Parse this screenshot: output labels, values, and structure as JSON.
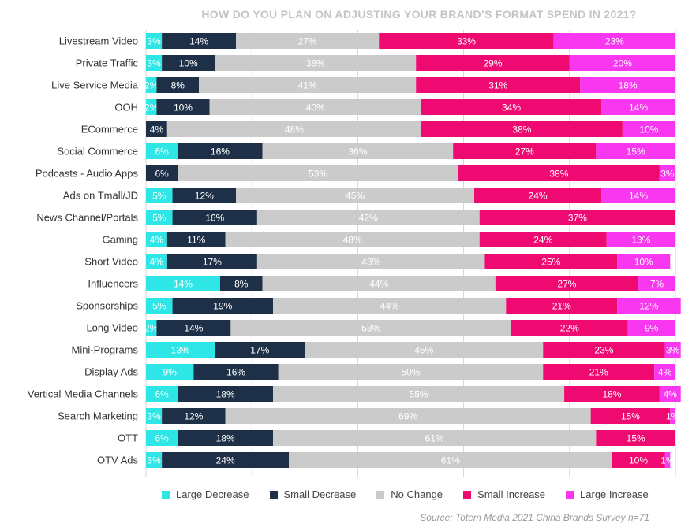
{
  "chart_data": {
    "type": "bar",
    "orientation": "horizontal-stacked-100",
    "title": "HOW DO YOU PLAN ON ADJUSTING YOUR BRAND’S FORMAT SPEND IN 2021?",
    "source": "Source: Totem Media 2021 China Brands Survey n=71",
    "xlim": [
      0,
      100
    ],
    "categories": [
      "Livestream Video",
      "Private Traffic",
      "Live Service Media",
      "OOH",
      "ECommerce",
      "Social Commerce",
      "Podcasts - Audio Apps",
      "Ads on Tmall/JD",
      "News Channel/Portals",
      "Gaming",
      "Short Video",
      "Influencers",
      "Sponsorships",
      "Long Video",
      "Mini-Programs",
      "Display Ads",
      "Vertical Media Channels",
      "Search Marketing",
      "OTT",
      "OTV Ads"
    ],
    "series": [
      {
        "name": "Large Decrease",
        "color": "#2ee6e6",
        "values": [
          3,
          3,
          2,
          2,
          0,
          6,
          0,
          5,
          5,
          4,
          4,
          14,
          5,
          2,
          13,
          9,
          6,
          3,
          6,
          3
        ]
      },
      {
        "name": "Small Decrease",
        "color": "#1e3048",
        "values": [
          14,
          10,
          8,
          10,
          4,
          16,
          6,
          12,
          16,
          11,
          17,
          8,
          19,
          14,
          17,
          16,
          18,
          12,
          18,
          24
        ]
      },
      {
        "name": "No Change",
        "color": "#cbcbcb",
        "values": [
          27,
          38,
          41,
          40,
          48,
          36,
          53,
          45,
          42,
          48,
          43,
          44,
          44,
          53,
          45,
          50,
          55,
          69,
          61,
          61
        ]
      },
      {
        "name": "Small Increase",
        "color": "#ef0a72",
        "values": [
          33,
          29,
          31,
          34,
          38,
          27,
          38,
          24,
          37,
          24,
          25,
          27,
          21,
          22,
          23,
          21,
          18,
          15,
          15,
          10
        ]
      },
      {
        "name": "Large Increase",
        "color": "#fa37f0",
        "values": [
          23,
          20,
          18,
          14,
          10,
          15,
          3,
          14,
          0,
          13,
          10,
          7,
          12,
          9,
          3,
          4,
          4,
          1,
          0,
          1
        ]
      }
    ],
    "value_label_suffix": "%"
  }
}
